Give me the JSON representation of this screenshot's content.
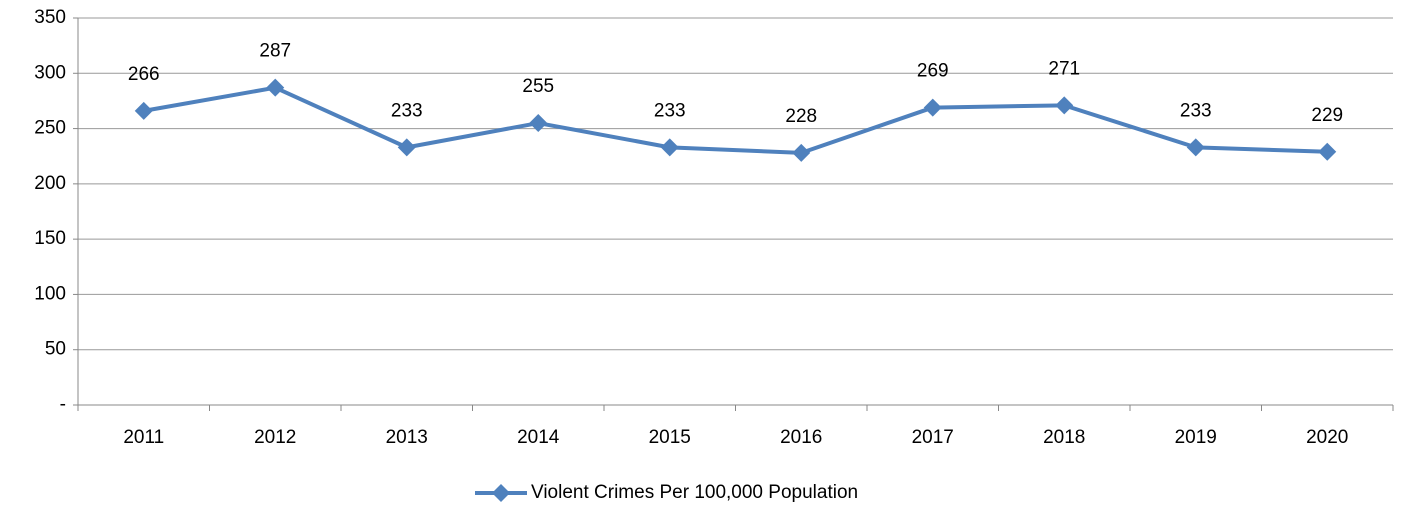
{
  "chart_data": {
    "type": "line",
    "categories": [
      "2011",
      "2012",
      "2013",
      "2014",
      "2015",
      "2016",
      "2017",
      "2018",
      "2019",
      "2020"
    ],
    "series": [
      {
        "name": "Violent Crimes Per 100,000 Population",
        "color": "#4f81bd",
        "values": [
          266,
          287,
          233,
          255,
          233,
          228,
          269,
          271,
          233,
          229
        ]
      }
    ],
    "ylim": [
      0,
      350
    ],
    "yticks": [
      {
        "value": 0,
        "label": "-"
      },
      50,
      100,
      150,
      200,
      250,
      300,
      350
    ],
    "grid": true,
    "legend": "bottom"
  }
}
